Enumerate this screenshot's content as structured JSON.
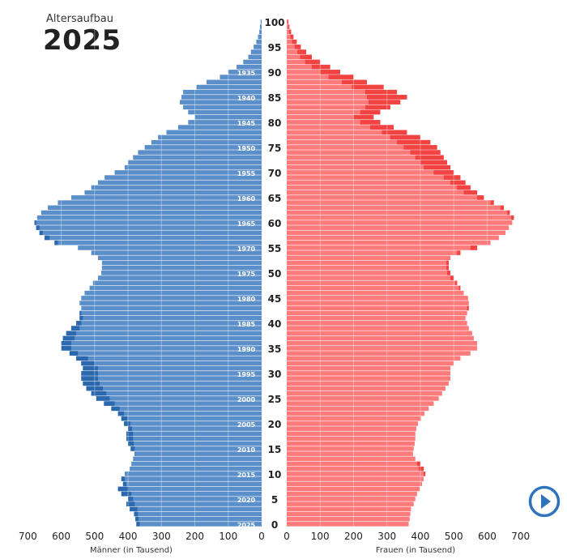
{
  "header": {
    "subtitle": "Altersaufbau",
    "year": "2025"
  },
  "colors": {
    "male": "#5b8fc9",
    "male_surplus": "#2c68ad",
    "female": "#ff7b7b",
    "female_surplus": "#f24343",
    "play": "#2f73bd"
  },
  "controls": {
    "play_icon": "play-circle-icon"
  },
  "chart_data": {
    "type": "population-pyramid",
    "title": "2025",
    "subtitle": "Altersaufbau",
    "age_axis_ticks": [
      0,
      5,
      10,
      15,
      20,
      25,
      30,
      35,
      40,
      45,
      50,
      55,
      60,
      65,
      70,
      75,
      80,
      85,
      90,
      95,
      100
    ],
    "birth_year_ticks": [
      1935,
      1940,
      1945,
      1950,
      1955,
      1960,
      1965,
      1970,
      1975,
      1980,
      1985,
      1990,
      1995,
      2000,
      2005,
      2010,
      2015,
      2020,
      2025
    ],
    "x_ticks": [
      700,
      600,
      500,
      400,
      300,
      200,
      100,
      0
    ],
    "xlim": [
      0,
      700
    ],
    "xlabel_left": "Männer (in Tausend)",
    "xlabel_right": "Frauen (in Tausend)",
    "series": [
      {
        "name": "Männer",
        "side": "left",
        "ages": "0..100",
        "values": [
          375,
          378,
          382,
          395,
          405,
          400,
          420,
          430,
          415,
          420,
          410,
          395,
          390,
          385,
          380,
          392,
          400,
          405,
          405,
          400,
          412,
          420,
          430,
          450,
          472,
          495,
          510,
          525,
          535,
          540,
          540,
          535,
          540,
          555,
          575,
          600,
          600,
          595,
          585,
          570,
          555,
          545,
          545,
          540,
          545,
          540,
          530,
          515,
          505,
          490,
          480,
          478,
          478,
          490,
          510,
          550,
          620,
          650,
          665,
          675,
          680,
          672,
          660,
          640,
          610,
          570,
          530,
          510,
          490,
          470,
          440,
          410,
          400,
          385,
          370,
          350,
          330,
          310,
          285,
          250,
          220,
          200,
          220,
          235,
          245,
          240,
          235,
          195,
          165,
          125,
          100,
          75,
          55,
          40,
          32,
          24,
          16,
          11,
          7,
          5,
          3
        ]
      },
      {
        "name": "Frauen",
        "side": "right",
        "ages": "0..100",
        "values": [
          365,
          368,
          370,
          372,
          380,
          385,
          390,
          398,
          405,
          410,
          415,
          410,
          400,
          385,
          378,
          380,
          383,
          385,
          385,
          388,
          393,
          402,
          412,
          425,
          440,
          455,
          465,
          475,
          485,
          490,
          490,
          490,
          500,
          520,
          550,
          570,
          570,
          560,
          555,
          545,
          540,
          535,
          540,
          545,
          545,
          542,
          530,
          520,
          510,
          500,
          490,
          485,
          485,
          490,
          520,
          570,
          610,
          635,
          655,
          665,
          675,
          680,
          668,
          650,
          620,
          590,
          570,
          550,
          535,
          520,
          500,
          490,
          480,
          470,
          460,
          450,
          430,
          400,
          360,
          320,
          280,
          260,
          280,
          310,
          340,
          360,
          330,
          290,
          240,
          200,
          160,
          130,
          100,
          75,
          58,
          42,
          30,
          20,
          13,
          8,
          5
        ]
      }
    ],
    "deficit_series": [
      {
        "name": "Männer (Überschuss gegenüber Frauen)",
        "values": [
          370,
          375,
          380,
          388,
          400,
          392,
          415,
          425,
          410,
          415,
          405,
          390,
          385,
          382,
          378,
          390,
          395,
          400,
          402,
          397,
          405,
          410,
          418,
          435,
          458,
          480,
          495,
          505,
          515,
          520,
          520,
          520,
          530,
          540,
          560,
          580,
          585,
          585,
          575,
          565,
          550,
          543,
          543,
          540,
          543,
          538,
          528,
          512,
          503,
          488,
          478,
          476,
          476,
          488,
          505,
          545,
          610,
          640,
          655,
          665,
          670,
          665,
          652,
          632,
          602,
          565,
          525,
          505,
          485,
          465,
          435,
          405,
          395,
          380,
          365,
          345,
          325,
          305,
          280,
          245,
          215,
          195,
          215,
          230,
          240,
          235,
          230,
          190,
          160,
          120,
          95,
          70,
          52,
          38,
          30,
          22,
          15,
          10,
          6,
          4,
          2
        ]
      },
      {
        "name": "Frauen (Überschuss gegenüber Männern)",
        "values": [
          360,
          362,
          365,
          368,
          375,
          380,
          385,
          392,
          400,
          405,
          410,
          405,
          395,
          380,
          372,
          375,
          378,
          380,
          380,
          383,
          388,
          396,
          405,
          418,
          430,
          445,
          455,
          465,
          475,
          480,
          480,
          480,
          490,
          510,
          540,
          560,
          560,
          550,
          545,
          538,
          535,
          530,
          535,
          540,
          540,
          537,
          525,
          515,
          505,
          495,
          485,
          480,
          480,
          485,
          510,
          560,
          600,
          625,
          645,
          655,
          665,
          670,
          660,
          640,
          610,
          575,
          545,
          515,
          490,
          470,
          440,
          410,
          390,
          365,
          340,
          310,
          280,
          250,
          210,
          180,
          150,
          140,
          150,
          160,
          170,
          175,
          165,
          140,
          110,
          90,
          70,
          55,
          40,
          30,
          24,
          18,
          13,
          9,
          6,
          4,
          2
        ]
      }
    ],
    "grid": true,
    "legend": "none"
  }
}
